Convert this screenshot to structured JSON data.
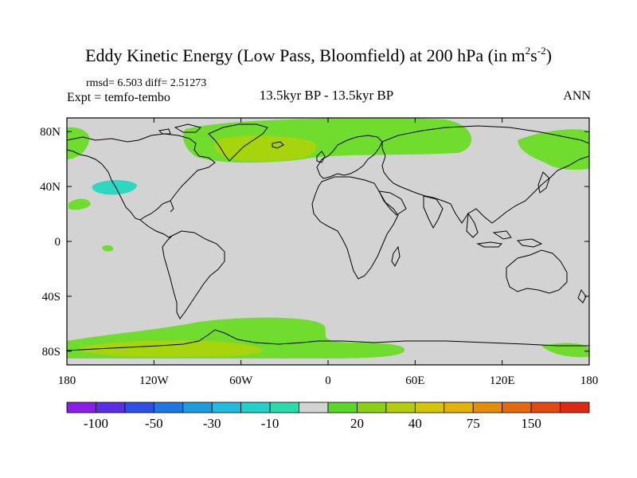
{
  "title": {
    "main": "Eddy Kinetic Energy (Low Pass, Bloomfield) at 200 hPa (in m",
    "sup1": "2",
    "mid": "s",
    "sup2": "-2",
    "end": ")"
  },
  "stats": "rmsd= 6.503 diff= 2.51273",
  "expt": "Expt = temfo-tembo",
  "center_label": "13.5kyr BP - 13.5kyr BP",
  "season": "ANN",
  "colors": {
    "ocean_background": "#d3d3d3",
    "green": "#6fdc2e",
    "yellow_green": "#a8d40e",
    "cyan": "#2fd6c2",
    "coastline": "#000000"
  },
  "map": {
    "projection": "cylindrical-equidistant",
    "lon_range": [
      -180,
      180
    ],
    "lat_range": [
      -90,
      90
    ],
    "lon_ticks": [
      {
        "value": -180,
        "label": "180"
      },
      {
        "value": -120,
        "label": "120W"
      },
      {
        "value": -60,
        "label": "60W"
      },
      {
        "value": 0,
        "label": "0"
      },
      {
        "value": 60,
        "label": "60E"
      },
      {
        "value": 120,
        "label": "120E"
      },
      {
        "value": 180,
        "label": "180"
      }
    ],
    "lat_ticks": [
      {
        "value": 80,
        "label": "80N"
      },
      {
        "value": 40,
        "label": "40N"
      },
      {
        "value": 0,
        "label": "0"
      },
      {
        "value": -40,
        "label": "40S"
      },
      {
        "value": -80,
        "label": "80S"
      }
    ]
  },
  "colorbar": {
    "colors": [
      "#8a1ee6",
      "#5a2ee6",
      "#2f50e6",
      "#1f78e0",
      "#1e9ce0",
      "#20bce0",
      "#22d0cc",
      "#2adcaa",
      "#d3d3d3",
      "#5ad62a",
      "#8cd016",
      "#b4cc0e",
      "#d4c40a",
      "#e4b00a",
      "#e48c0c",
      "#e46a10",
      "#e24a14",
      "#de2a14"
    ],
    "labels": [
      {
        "boundary": 1,
        "text": "-100"
      },
      {
        "boundary": 3,
        "text": "-50"
      },
      {
        "boundary": 5,
        "text": "-30"
      },
      {
        "boundary": 7,
        "text": "-10"
      },
      {
        "boundary": 10,
        "text": "20"
      },
      {
        "boundary": 12,
        "text": "40"
      },
      {
        "boundary": 14,
        "text": "75"
      },
      {
        "boundary": 16,
        "text": "150"
      }
    ]
  }
}
